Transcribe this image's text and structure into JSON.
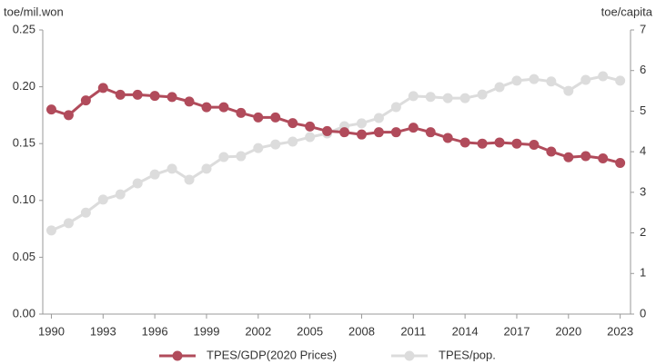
{
  "chart_data": {
    "type": "line",
    "y_label": "toe/mil.won",
    "y2_label": "toe/capita",
    "x": [
      1990,
      1991,
      1992,
      1993,
      1994,
      1995,
      1996,
      1997,
      1998,
      1999,
      2000,
      2001,
      2002,
      2003,
      2004,
      2005,
      2006,
      2007,
      2008,
      2009,
      2010,
      2011,
      2012,
      2013,
      2014,
      2015,
      2016,
      2017,
      2018,
      2019,
      2020,
      2021,
      2022,
      2023
    ],
    "series": [
      {
        "name": "TPES/GDP(2020 Prices)",
        "color": "#b14b5b",
        "axis": "y",
        "values": [
          0.18,
          0.175,
          0.188,
          0.199,
          0.193,
          0.193,
          0.192,
          0.191,
          0.187,
          0.182,
          0.182,
          0.177,
          0.173,
          0.173,
          0.168,
          0.165,
          0.161,
          0.16,
          0.158,
          0.16,
          0.16,
          0.164,
          0.16,
          0.155,
          0.151,
          0.15,
          0.151,
          0.15,
          0.149,
          0.143,
          0.138,
          0.139,
          0.137,
          0.133
        ]
      },
      {
        "name": "TPES/pop.",
        "color": "#dcdcdc",
        "axis": "y2",
        "values": [
          2.06,
          2.24,
          2.5,
          2.82,
          2.95,
          3.22,
          3.44,
          3.58,
          3.31,
          3.58,
          3.87,
          3.89,
          4.09,
          4.18,
          4.25,
          4.36,
          4.45,
          4.63,
          4.7,
          4.83,
          5.1,
          5.37,
          5.35,
          5.32,
          5.32,
          5.41,
          5.59,
          5.75,
          5.79,
          5.73,
          5.5,
          5.77,
          5.86,
          5.75
        ]
      }
    ],
    "xlim": [
      1989.5,
      2023.6
    ],
    "xticks": [
      1990,
      1993,
      1996,
      1999,
      2002,
      2005,
      2008,
      2011,
      2014,
      2017,
      2020,
      2023
    ],
    "ylim": [
      0,
      0.25
    ],
    "yticks": [
      {
        "value": 0,
        "label": "0.00"
      },
      0.05,
      {
        "value": 0.1,
        "label": "0.10"
      },
      0.15,
      {
        "value": 0.2,
        "label": "0.20"
      },
      0.25
    ],
    "y2lim": [
      0,
      7
    ],
    "y2ticks": [
      0,
      1,
      2,
      3,
      4,
      5,
      6,
      7
    ],
    "grid": false,
    "legend": "bottom"
  }
}
